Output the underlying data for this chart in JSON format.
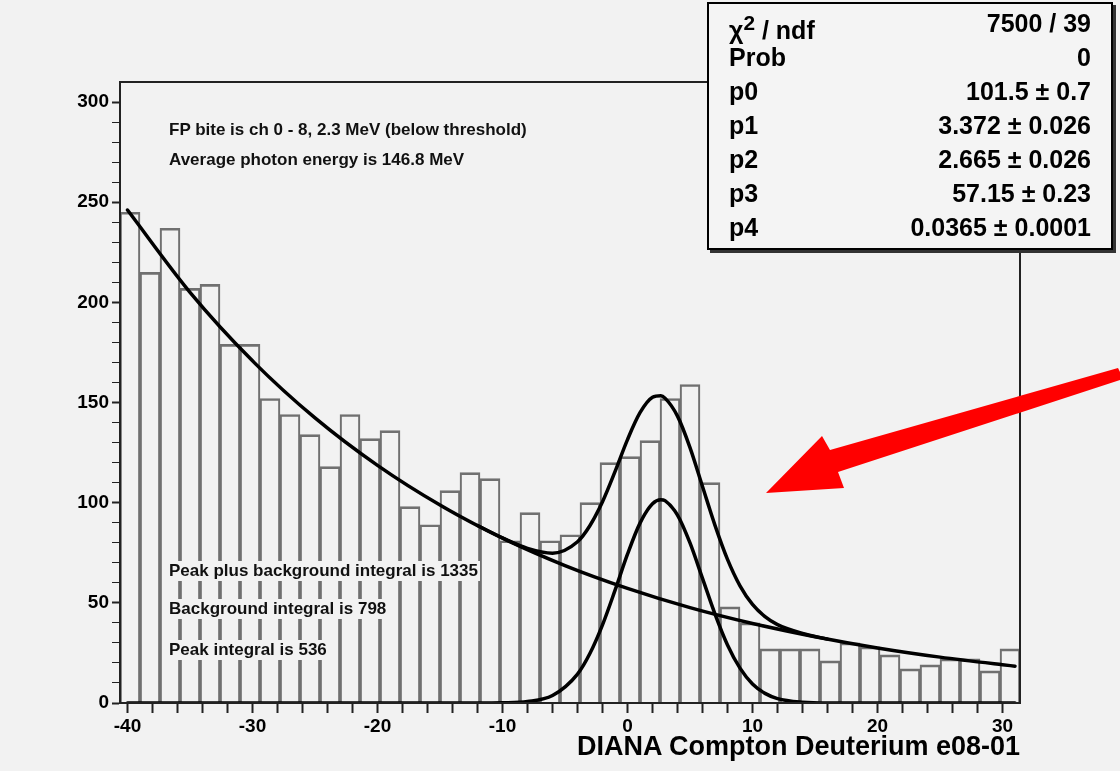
{
  "chart_data": {
    "type": "bar",
    "xlabel": "DIANA Compton Deuterium e08-01",
    "annotations": [
      "FP bite is ch 0 - 8, 2.3 MeV (below threshold)",
      "Average photon energy is 146.8 MeV",
      "Peak plus background integral is 1335",
      "Background integral is 798",
      "Peak integral is 536",
      "χ$^{2}$ / ndf",
      "7500 / 39",
      "Prob",
      "0",
      "p0",
      "101.5 ± 0.7",
      "p1",
      "3.372 ± 0.026",
      "p2",
      "2.665 ± 0.026",
      "p3",
      "57.15 ± 0.23",
      "p4",
      "0.0365 ± 0.0001"
    ],
    "x": [
      -39.8,
      -38.2,
      -36.6,
      -35.0,
      -33.4,
      -31.8,
      -30.2,
      -28.6,
      -27.0,
      -25.4,
      -23.8,
      -22.2,
      -20.6,
      -19.0,
      -17.4,
      -15.8,
      -14.2,
      -12.6,
      -11.0,
      -9.4,
      -7.8,
      -6.2,
      -4.6,
      -3.0,
      -1.4,
      0.2,
      1.8,
      3.4,
      5.0,
      6.6,
      8.2,
      9.8,
      11.4,
      13.0,
      14.6,
      16.2,
      17.8,
      19.4,
      21.0,
      22.6,
      24.2,
      25.8,
      27.4,
      29.0,
      30.6
    ],
    "values": [
      245,
      215,
      237,
      207,
      209,
      179,
      179,
      152,
      144,
      134,
      118,
      144,
      132,
      136,
      98,
      89,
      106,
      115,
      112,
      81,
      95,
      81,
      84,
      100,
      120,
      123,
      131,
      152,
      159,
      110,
      48,
      40,
      27,
      27,
      27,
      21,
      30,
      28,
      24,
      17,
      19,
      22,
      22,
      16,
      27
    ],
    "color": "#707070",
    "series": [
      {
        "type": "line",
        "color": "#000000",
        "x": [
          -40,
          -35,
          -30,
          -25,
          -20,
          -15,
          -10,
          -5,
          0,
          5,
          10,
          15,
          20,
          25,
          30,
          31
        ],
        "values": [
          246.1,
          205.0,
          170.8,
          142.3,
          118.6,
          98.8,
          82.3,
          68.6,
          57.2,
          47.6,
          39.7,
          33.1,
          27.5,
          22.9,
          19.1,
          18.4
        ]
      },
      {
        "type": "line",
        "color": "#000000",
        "x": [
          -12,
          -10,
          -8,
          -6,
          -4,
          -3,
          -2,
          -1,
          0,
          1,
          2,
          2.665,
          3,
          4,
          5,
          6,
          7,
          8,
          9,
          10,
          11,
          12,
          14,
          16
        ],
        "values": [
          88.6,
          82.4,
          77.2,
          74.8,
          80.5,
          88.6,
          100.5,
          115.5,
          131.5,
          144.9,
          152.6,
          153.4,
          152.2,
          143.2,
          127.5,
          108.1,
          88.7,
          71.7,
          58.5,
          49.2,
          43.1,
          39.1,
          34.7,
          31.9
        ]
      },
      {
        "type": "line",
        "color": "#000000",
        "x": [
          -40,
          -12,
          -10,
          -8,
          -6,
          -4,
          -3,
          -2,
          -1,
          0,
          1,
          2,
          2.665,
          3,
          4,
          5,
          6,
          7,
          8,
          9,
          10,
          11,
          12,
          14,
          16,
          31
        ],
        "values": [
          0,
          0,
          0.1,
          0.7,
          3.7,
          14.4,
          24.8,
          39.0,
          56.2,
          74.3,
          89.8,
          99.5,
          101.5,
          101.0,
          93.8,
          79.9,
          62.2,
          44.4,
          29.0,
          17.4,
          9.5,
          4.8,
          2.2,
          0.4,
          0,
          0
        ]
      }
    ],
    "xlim": [
      -40.6,
      31.4
    ],
    "xticks": [
      -40,
      {
        "value": -38,
        "label": null
      },
      {
        "value": -36,
        "label": null
      },
      {
        "value": -34,
        "label": null
      },
      {
        "value": -32,
        "label": null
      },
      -30,
      {
        "value": -28,
        "label": null
      },
      {
        "value": -26,
        "label": null
      },
      {
        "value": -24,
        "label": null
      },
      {
        "value": -22,
        "label": null
      },
      -20,
      {
        "value": -18,
        "label": null
      },
      {
        "value": -16,
        "label": null
      },
      {
        "value": -14,
        "label": null
      },
      {
        "value": -12,
        "label": null
      },
      -10,
      {
        "value": -8,
        "label": null
      },
      {
        "value": -6,
        "label": null
      },
      {
        "value": -4,
        "label": null
      },
      {
        "value": -2,
        "label": null
      },
      0,
      {
        "value": 2,
        "label": null
      },
      {
        "value": 4,
        "label": null
      },
      {
        "value": 6,
        "label": null
      },
      {
        "value": 8,
        "label": null
      },
      10,
      {
        "value": 12,
        "label": null
      },
      {
        "value": 14,
        "label": null
      },
      {
        "value": 16,
        "label": null
      },
      {
        "value": 18,
        "label": null
      },
      20,
      {
        "value": 22,
        "label": null
      },
      {
        "value": 24,
        "label": null
      },
      {
        "value": 26,
        "label": null
      },
      {
        "value": 28,
        "label": null
      },
      30
    ],
    "ylim": [
      0,
      310
    ],
    "yticks": [
      0,
      {
        "value": 10,
        "label": null
      },
      {
        "value": 20,
        "label": null
      },
      {
        "value": 30,
        "label": null
      },
      {
        "value": 40,
        "label": null
      },
      50,
      {
        "value": 60,
        "label": null
      },
      {
        "value": 70,
        "label": null
      },
      {
        "value": 80,
        "label": null
      },
      {
        "value": 90,
        "label": null
      },
      100,
      {
        "value": 110,
        "label": null
      },
      {
        "value": 120,
        "label": null
      },
      {
        "value": 130,
        "label": null
      },
      {
        "value": 140,
        "label": null
      },
      150,
      {
        "value": 160,
        "label": null
      },
      {
        "value": 170,
        "label": null
      },
      {
        "value": 180,
        "label": null
      },
      {
        "value": 190,
        "label": null
      },
      200,
      {
        "value": 210,
        "label": null
      },
      {
        "value": 220,
        "label": null
      },
      {
        "value": 230,
        "label": null
      },
      {
        "value": 240,
        "label": null
      },
      250,
      {
        "value": 260,
        "label": null
      },
      {
        "value": 270,
        "label": null
      },
      {
        "value": 280,
        "label": null
      },
      {
        "value": 290,
        "label": null
      },
      300
    ]
  }
}
